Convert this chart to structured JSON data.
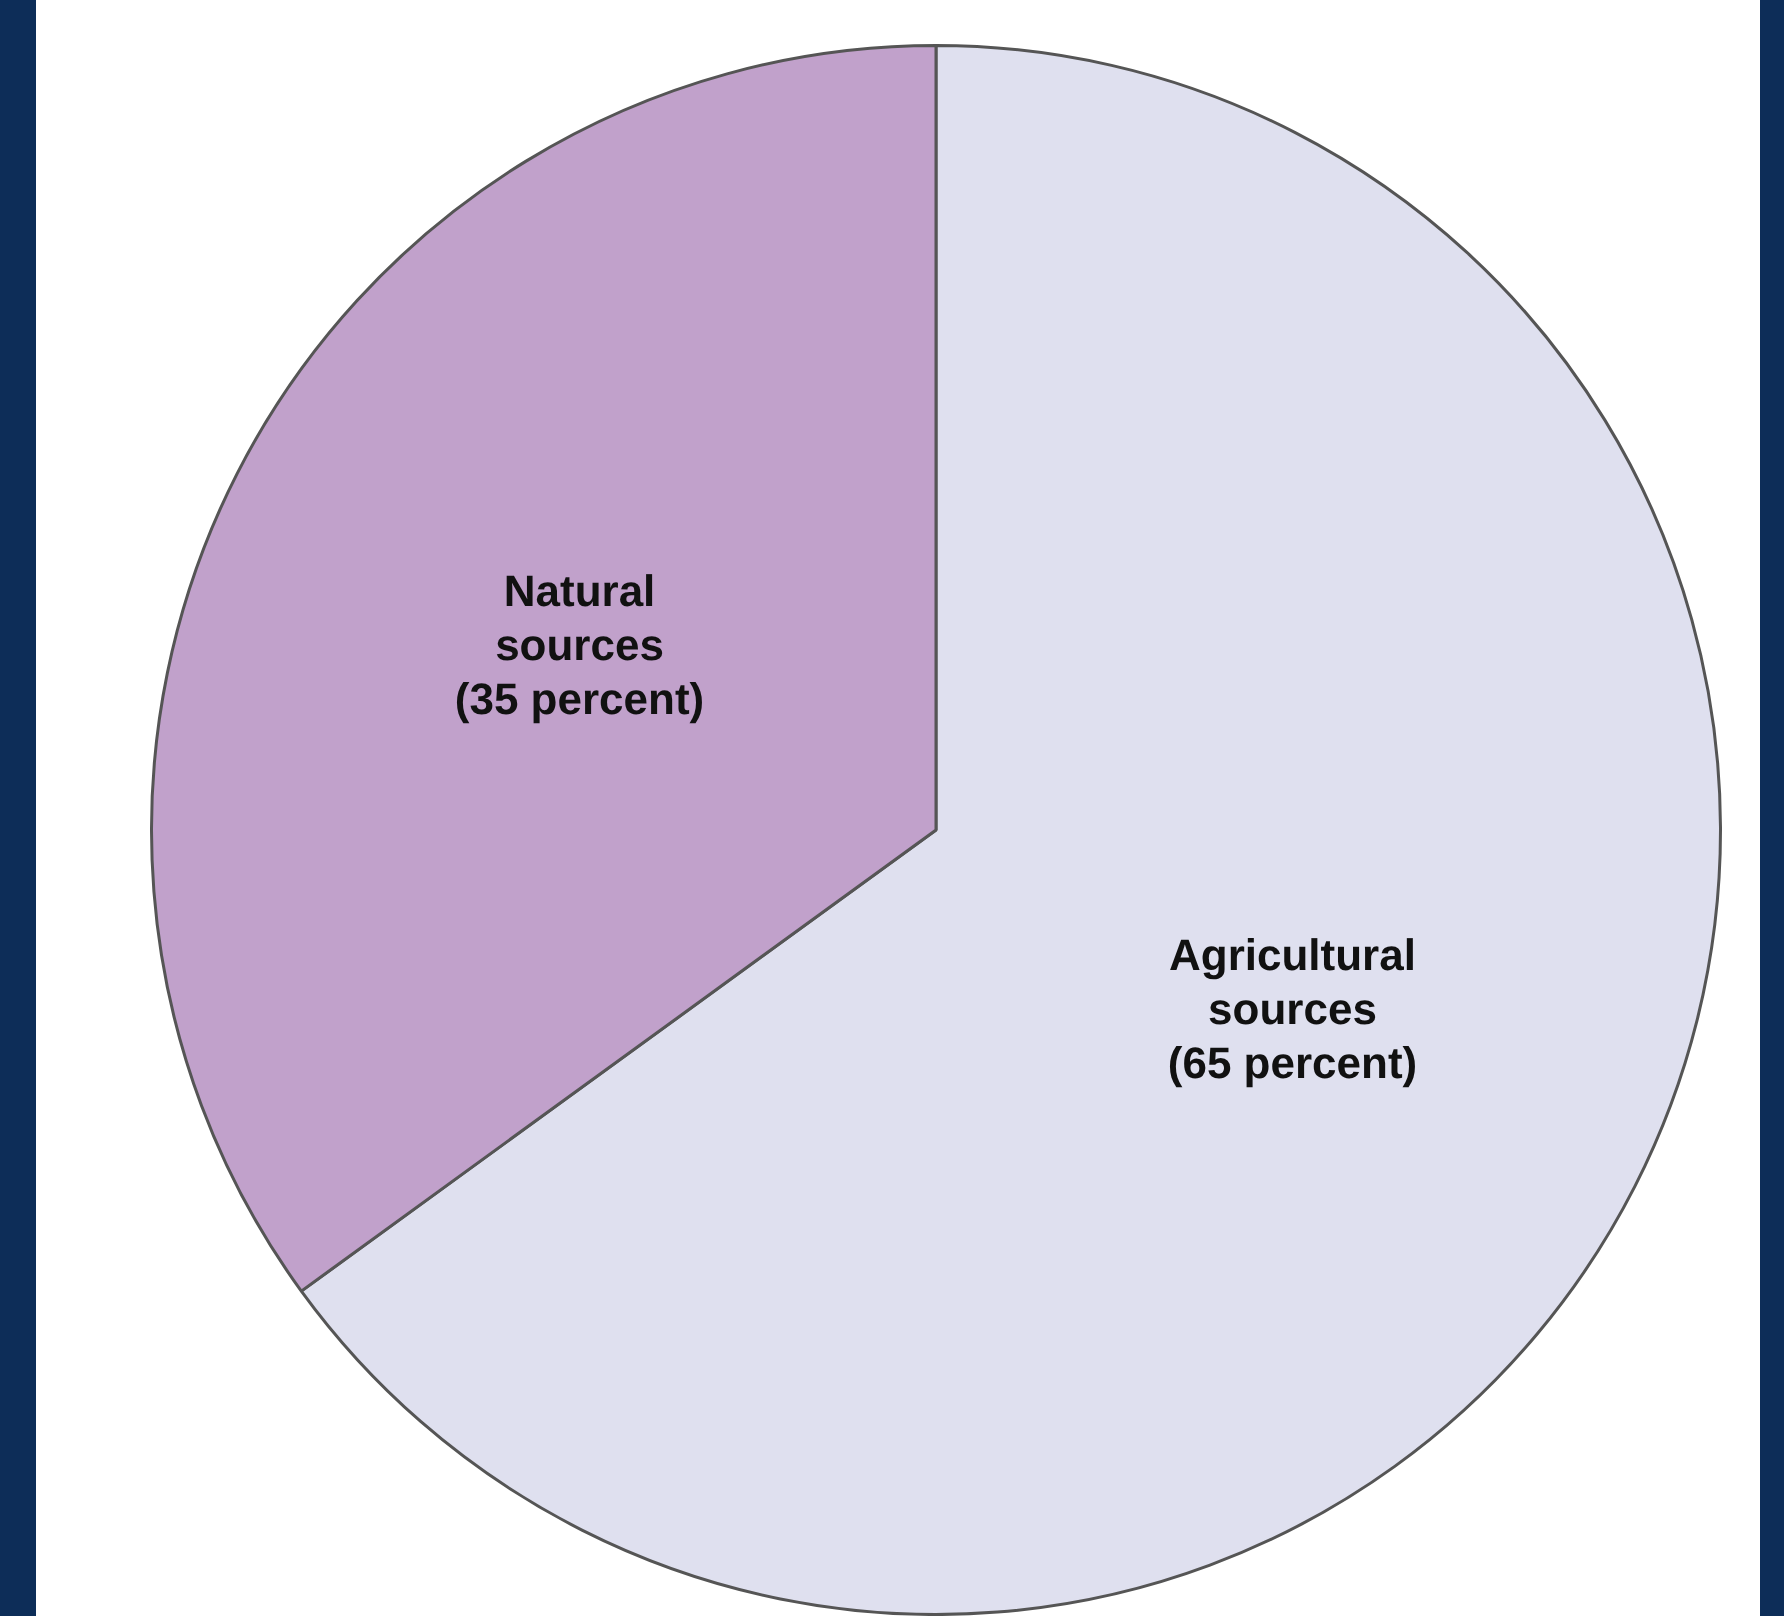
{
  "chart_data": {
    "type": "pie",
    "categories": [
      "Agricultural sources",
      "Natural sources"
    ],
    "values": [
      65,
      35
    ],
    "colors": [
      "#dfe0ef",
      "#c1a1cb"
    ],
    "value_labels": [
      "(65 percent)",
      "(35 percent)"
    ],
    "legend": false
  }
}
